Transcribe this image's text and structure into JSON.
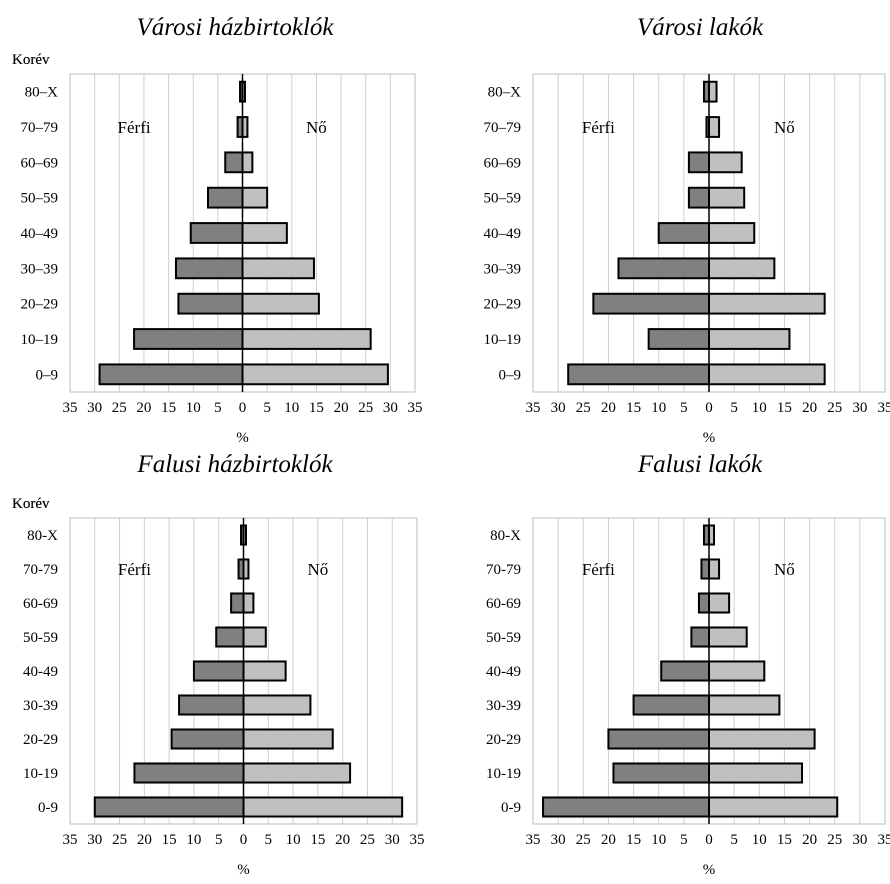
{
  "chart_data": [
    {
      "type": "bar",
      "orientation": "horizontal",
      "title": "Városi házbirtoklók",
      "ylabel": "Korév",
      "xlabel": "%",
      "categories": [
        "80–X",
        "70–79",
        "60–69",
        "50–59",
        "40–49",
        "30–39",
        "20–29",
        "10–19",
        "0–9"
      ],
      "series": [
        {
          "name": "Férfi",
          "values": [
            0.5,
            1,
            3.5,
            7,
            10.5,
            13.5,
            13,
            22,
            29
          ]
        },
        {
          "name": "Nő",
          "values": [
            0.5,
            1,
            2,
            5,
            9,
            14.5,
            15.5,
            26,
            29.5
          ]
        }
      ],
      "xticks": [
        "35",
        "30",
        "25",
        "20",
        "15",
        "10",
        "5",
        "0",
        "5",
        "10",
        "15",
        "20",
        "25",
        "30",
        "35"
      ],
      "xlim": [
        -35,
        35
      ],
      "grid": true,
      "colors": {
        "Férfi": "#808080",
        "Nő": "#c0c0c0"
      }
    },
    {
      "type": "bar",
      "orientation": "horizontal",
      "title": "Városi lakók",
      "ylabel": "Korév",
      "xlabel": "%",
      "categories": [
        "80–X",
        "70–79",
        "60–69",
        "50–59",
        "40–49",
        "30–39",
        "20–29",
        "10–19",
        "0–9"
      ],
      "series": [
        {
          "name": "Férfi",
          "values": [
            1,
            0.5,
            4,
            4,
            10,
            18,
            23,
            12,
            28
          ]
        },
        {
          "name": "Nő",
          "values": [
            1.5,
            2,
            6.5,
            7,
            9,
            13,
            23,
            16,
            23
          ]
        }
      ],
      "xticks": [
        "35",
        "30",
        "25",
        "20",
        "15",
        "10",
        "5",
        "0",
        "5",
        "10",
        "15",
        "20",
        "25",
        "30",
        "35"
      ],
      "xlim": [
        -35,
        35
      ],
      "grid": true,
      "colors": {
        "Férfi": "#808080",
        "Nő": "#c0c0c0"
      }
    },
    {
      "type": "bar",
      "orientation": "horizontal",
      "title": "Falusi házbirtoklók",
      "ylabel": "Korév",
      "xlabel": "%",
      "categories": [
        "80-X",
        "70-79",
        "60-69",
        "50-59",
        "40-49",
        "30-39",
        "20-29",
        "10-19",
        "0-9"
      ],
      "series": [
        {
          "name": "Férfi",
          "values": [
            0.5,
            1,
            2.5,
            5.5,
            10,
            13,
            14.5,
            22,
            30
          ]
        },
        {
          "name": "Nő",
          "values": [
            0.5,
            1,
            2,
            4.5,
            8.5,
            13.5,
            18,
            21.5,
            32
          ]
        }
      ],
      "xticks": [
        "35",
        "30",
        "25",
        "20",
        "15",
        "10",
        "5",
        "0",
        "5",
        "10",
        "15",
        "20",
        "25",
        "30",
        "35"
      ],
      "xlim": [
        -35,
        35
      ],
      "grid": true,
      "colors": {
        "Férfi": "#808080",
        "Nő": "#c0c0c0"
      }
    },
    {
      "type": "bar",
      "orientation": "horizontal",
      "title": "Falusi lakók",
      "ylabel": "Korév",
      "xlabel": "%",
      "categories": [
        "80-X",
        "70-79",
        "60-69",
        "50-59",
        "40-49",
        "30-39",
        "20-29",
        "10-19",
        "0-9"
      ],
      "series": [
        {
          "name": "Férfi",
          "values": [
            1,
            1.5,
            2,
            3.5,
            9.5,
            15,
            20,
            19,
            33
          ]
        },
        {
          "name": "Nő",
          "values": [
            1,
            2,
            4,
            7.5,
            11,
            14,
            21,
            18.5,
            25.5
          ]
        }
      ],
      "xticks": [
        "35",
        "30",
        "25",
        "20",
        "15",
        "10",
        "5",
        "0",
        "5",
        "10",
        "15",
        "20",
        "25",
        "30",
        "35"
      ],
      "xlim": [
        -35,
        35
      ],
      "grid": true,
      "colors": {
        "Férfi": "#808080",
        "Nő": "#c0c0c0"
      }
    }
  ]
}
